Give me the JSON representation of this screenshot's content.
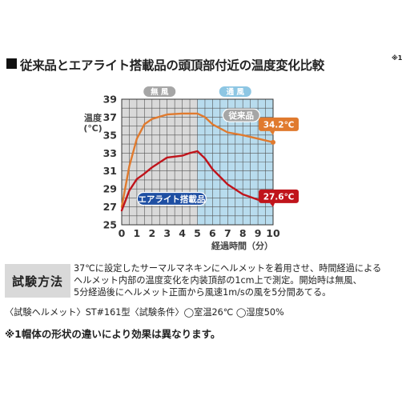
{
  "title": "従来品とエアライト搭載品の頭頂部付近の温度変化比較",
  "title_note": "※1",
  "chart_data": {
    "type": "line",
    "ylabel_lines": [
      "温度",
      "(℃)"
    ],
    "xlabel": "経過時間（分）",
    "ylim": [
      25,
      39
    ],
    "yticks": [
      25,
      27,
      29,
      31,
      33,
      35,
      37,
      39
    ],
    "xlim": [
      0,
      10
    ],
    "xticks": [
      0,
      1,
      2,
      3,
      4,
      5,
      6,
      7,
      8,
      9,
      10
    ],
    "grid": true,
    "phases": [
      {
        "label": "無 風",
        "from": 0,
        "to": 5,
        "color": "#d9d9d9",
        "badge_color": "#a6a6a6"
      },
      {
        "label": "通 風",
        "from": 5,
        "to": 10,
        "color": "#b8dcee",
        "badge_color": "#8dc6e3"
      }
    ],
    "series": [
      {
        "name": "従来品",
        "color": "#e07a2e",
        "label_bg": "#a6a6a6",
        "end_label": "34.2℃",
        "x": [
          0,
          0.5,
          1,
          1.5,
          2,
          3,
          4,
          5,
          5.5,
          6,
          7,
          8,
          9,
          10
        ],
        "values": [
          27,
          31.5,
          34.6,
          36.2,
          36.8,
          37.3,
          37.4,
          37.4,
          37.0,
          36.2,
          35.3,
          35.0,
          34.6,
          34.2
        ]
      },
      {
        "name": "エアライト搭載品",
        "color": "#c0141b",
        "label_bg": "#1f4fa3",
        "end_label": "27.6℃",
        "x": [
          0,
          0.5,
          1,
          1.5,
          2,
          3,
          4,
          4.5,
          5,
          5.5,
          6,
          7,
          8,
          9,
          10
        ],
        "values": [
          26.6,
          28.8,
          30.1,
          30.7,
          31.4,
          32.5,
          32.7,
          33.0,
          33.2,
          32.4,
          31.2,
          29.5,
          28.4,
          27.8,
          27.6
        ]
      }
    ]
  },
  "method": {
    "label": "試験方法",
    "lines": [
      "37℃に設定したサーマルマネキンにヘルメットを着用させ、時間経過による",
      "ヘルメット内部の温度変化を内装頂部の1cm上で測定。開始時は無風、",
      "5分経過後にヘルメット正面から風速1m/sの風を5分間あてる。"
    ]
  },
  "conditions": "〈試験ヘルメット〉ST#161型〈試験条件〉◯室温26℃ ◯湿度50%",
  "note": "※1帽体の形状の違いにより効果は異なります。"
}
